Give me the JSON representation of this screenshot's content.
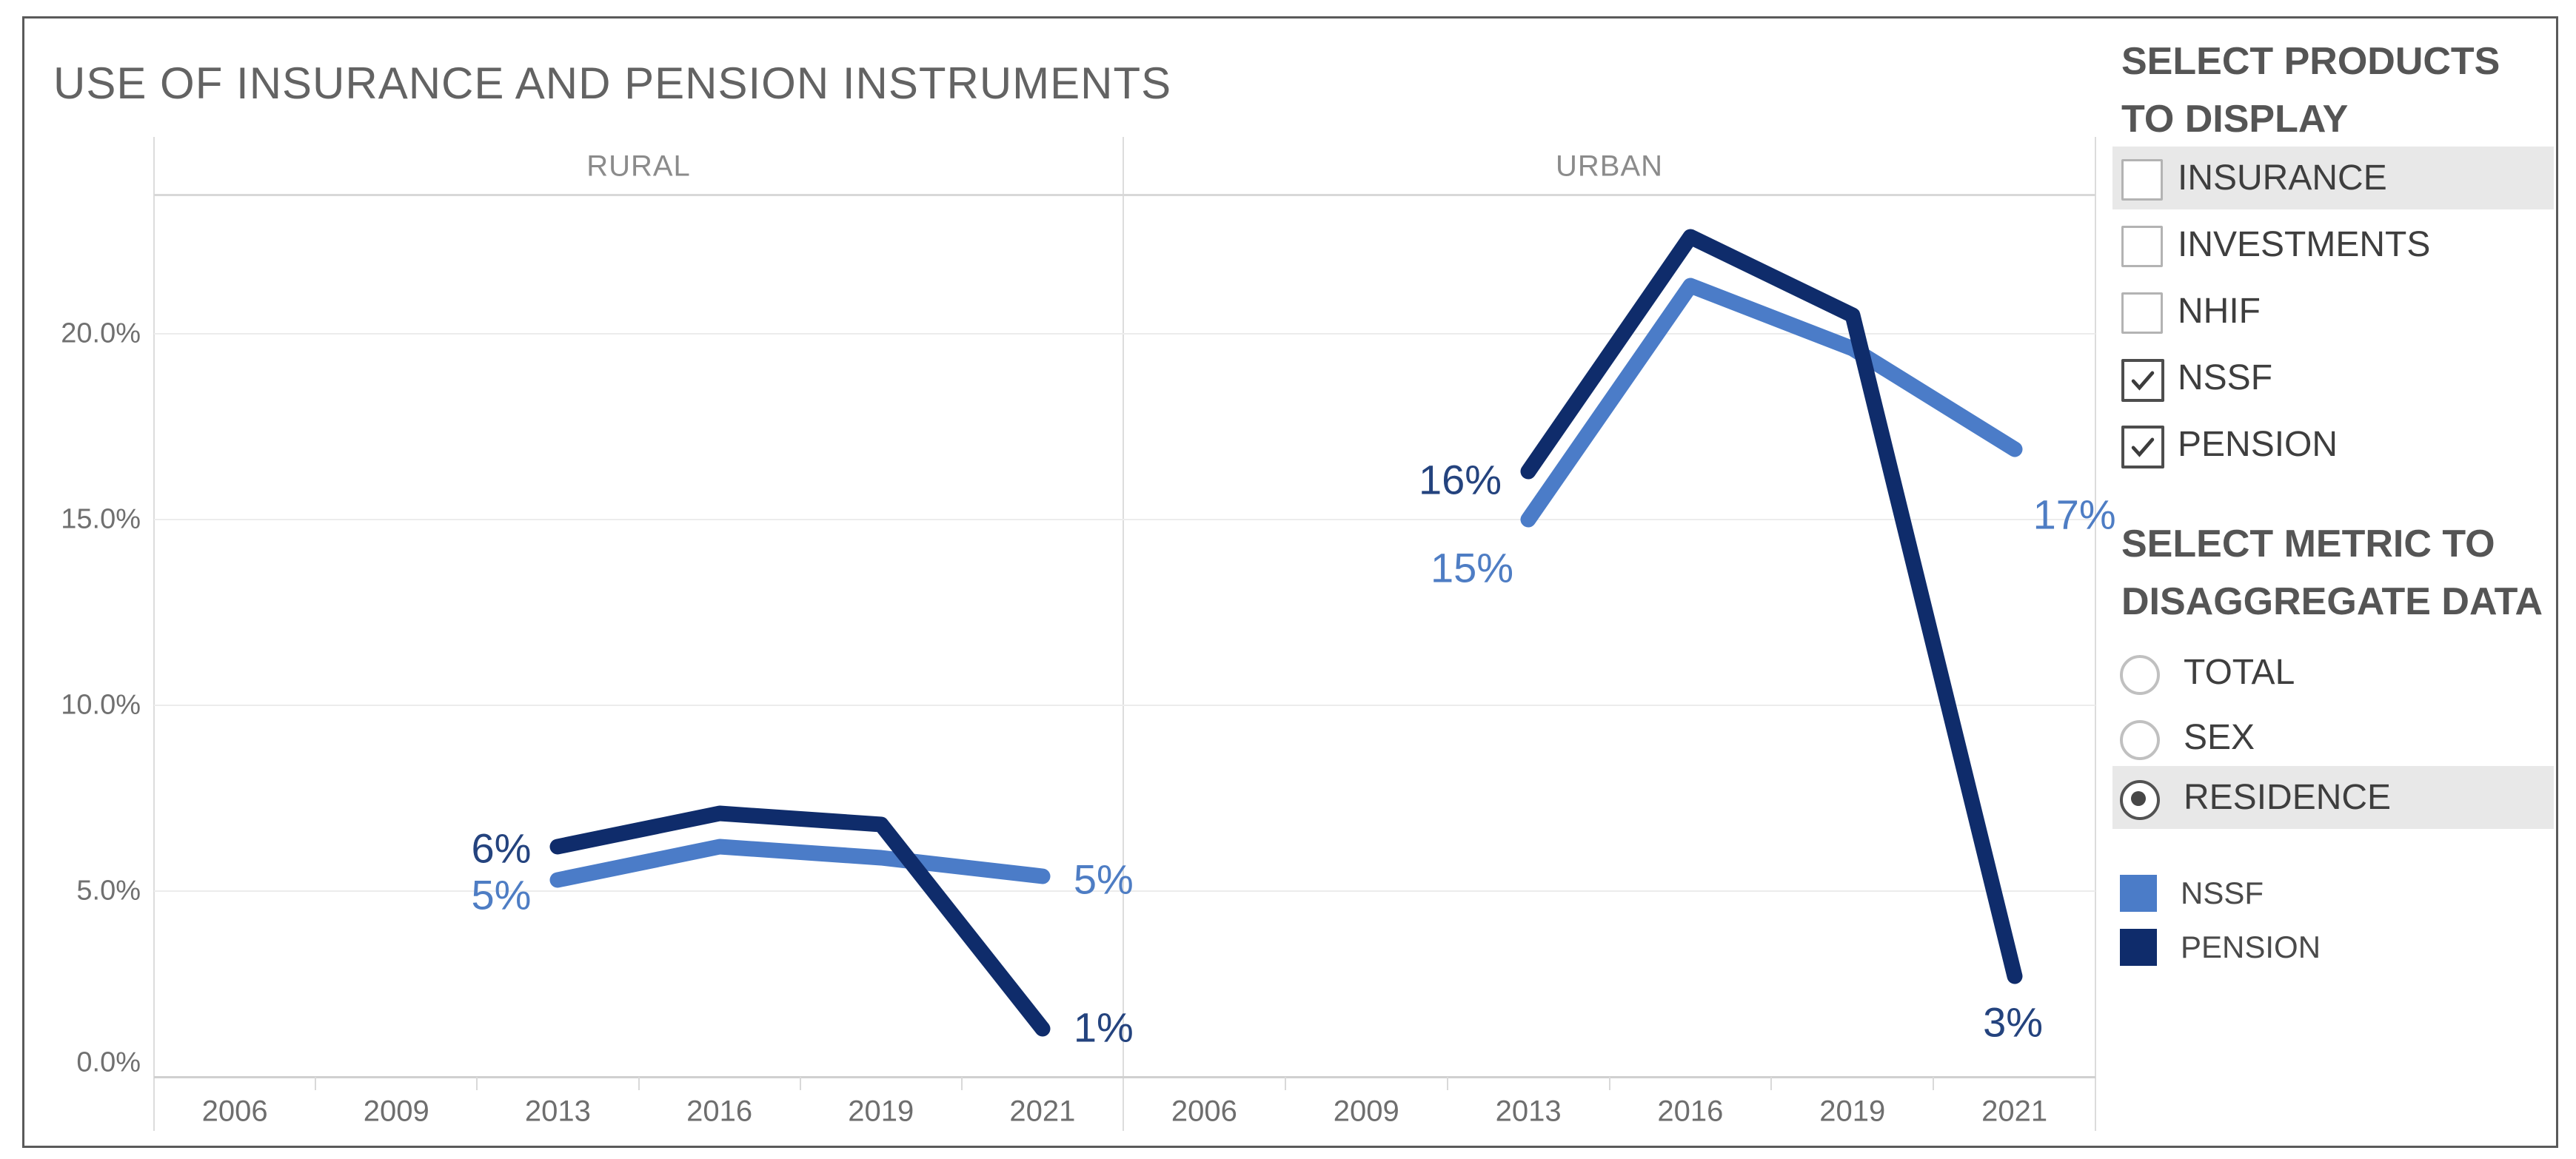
{
  "page": {
    "title": "USE OF INSURANCE AND PENSION INSTRUMENTS"
  },
  "sidebar": {
    "products": {
      "title_line1": "SELECT PRODUCTS",
      "title_line2": "TO DISPLAY",
      "items": [
        {
          "label": "INSURANCE",
          "checked": false,
          "highlighted": true
        },
        {
          "label": "INVESTMENTS",
          "checked": false,
          "highlighted": false
        },
        {
          "label": "NHIF",
          "checked": false,
          "highlighted": false
        },
        {
          "label": "NSSF",
          "checked": true,
          "highlighted": false
        },
        {
          "label": "PENSION",
          "checked": true,
          "highlighted": false
        }
      ]
    },
    "metric": {
      "title_line1": "SELECT METRIC TO",
      "title_line2": "DISAGGREGATE DATA",
      "options": [
        {
          "label": "TOTAL",
          "selected": false,
          "highlighted": false
        },
        {
          "label": "SEX",
          "selected": false,
          "highlighted": false
        },
        {
          "label": "RESIDENCE",
          "selected": true,
          "highlighted": true
        }
      ]
    },
    "legend": {
      "items": [
        {
          "label": "NSSF",
          "color": "#4b7cc8"
        },
        {
          "label": "PENSION",
          "color": "#0f2c6b"
        }
      ]
    }
  },
  "chart_data": {
    "type": "line",
    "title": "USE OF INSURANCE AND PENSION INSTRUMENTS",
    "grid": true,
    "legend_position": "right",
    "ylim": [
      0,
      23.7
    ],
    "y_ticks": [
      {
        "v": 20,
        "label": "20.0%"
      },
      {
        "v": 15,
        "label": "15.0%"
      },
      {
        "v": 10,
        "label": "10.0%"
      },
      {
        "v": 5,
        "label": "5.0%"
      },
      {
        "v": 0,
        "label": "0.0%"
      }
    ],
    "panels": [
      {
        "header": "RURAL",
        "categories": [
          "2006",
          "2009",
          "2013",
          "2016",
          "2019",
          "2021"
        ],
        "series": [
          {
            "name": "NSSF",
            "color": "#4b7cc8",
            "label_color": "#4e7dc4",
            "x": [
              "2013",
              "2016",
              "2019",
              "2021"
            ],
            "values": [
              5.3,
              6.2,
              5.9,
              5.4
            ],
            "first_label": "5%",
            "last_label": "5%"
          },
          {
            "name": "PENSION",
            "color": "#0f2c6b",
            "label_color": "#24437e",
            "x": [
              "2013",
              "2016",
              "2019",
              "2021"
            ],
            "values": [
              6.2,
              7.1,
              6.8,
              1.3
            ],
            "first_label": "6%",
            "last_label": "1%"
          }
        ]
      },
      {
        "header": "URBAN",
        "categories": [
          "2006",
          "2009",
          "2013",
          "2016",
          "2019",
          "2021"
        ],
        "series": [
          {
            "name": "NSSF",
            "color": "#4b7cc8",
            "label_color": "#4e7dc4",
            "x": [
              "2013",
              "2016",
              "2019",
              "2021"
            ],
            "values": [
              15.0,
              21.3,
              19.6,
              16.9
            ],
            "first_label": "15%",
            "last_label": "17%"
          },
          {
            "name": "PENSION",
            "color": "#0f2c6b",
            "label_color": "#24437e",
            "x": [
              "2013",
              "2016",
              "2019",
              "2021"
            ],
            "values": [
              16.3,
              22.6,
              20.5,
              2.7
            ],
            "first_label": "16%",
            "last_label": "3%"
          }
        ]
      }
    ]
  }
}
